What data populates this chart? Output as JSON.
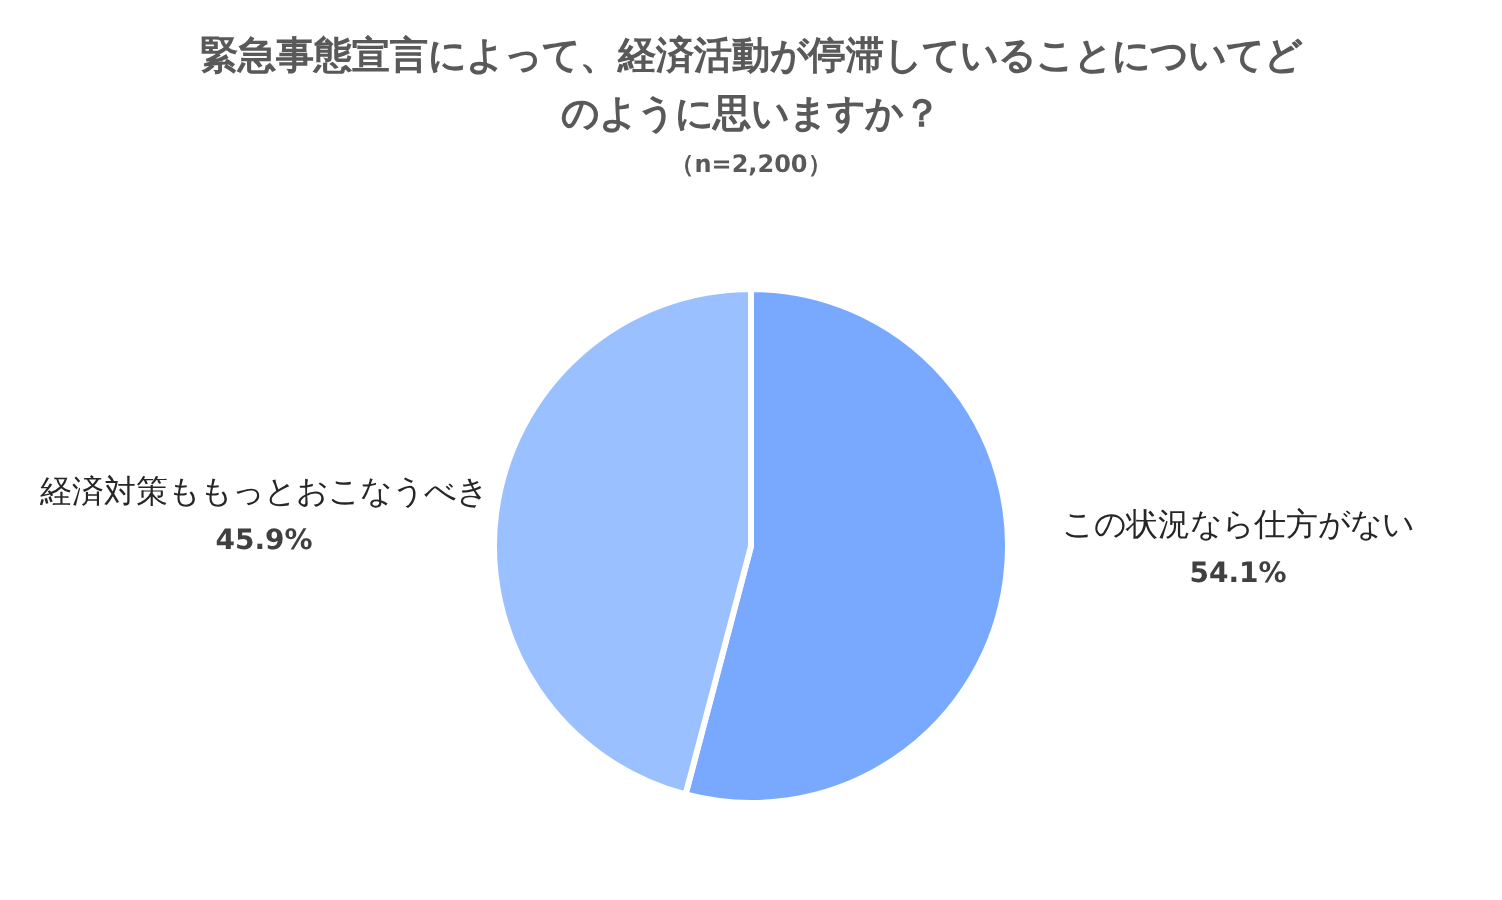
{
  "chart_data": {
    "type": "pie",
    "title": "緊急事態宣言によって、経済活動が停滞していることについてどのように思いますか？",
    "subtitle": "（n=2,200）",
    "categories": [
      "この状況なら仕方がない",
      "経済対策ももっとおこなうべき"
    ],
    "values": [
      54.1,
      45.9
    ],
    "colors": [
      "#78a9ff",
      "#9ac0ff"
    ],
    "value_labels": [
      "54.1%",
      "45.9%"
    ]
  }
}
